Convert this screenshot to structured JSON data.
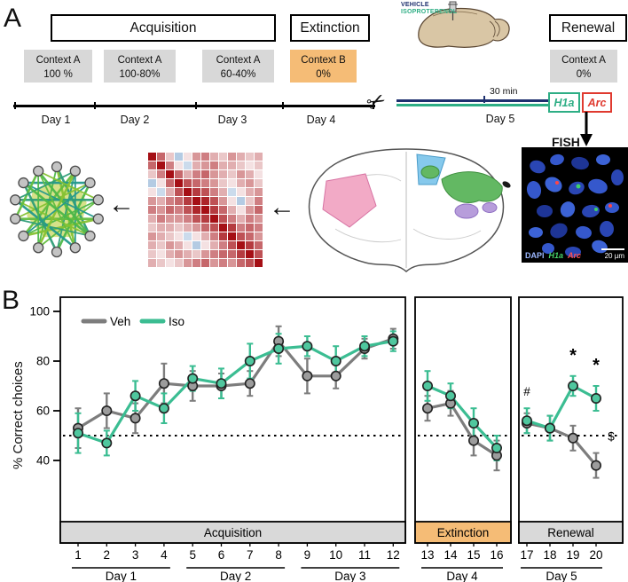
{
  "figure": {
    "panel_a_label": "A",
    "panel_b_label": "B"
  },
  "colors": {
    "iso": "#3bbd92",
    "veh": "#7d7d7d",
    "orange": "#f5bc76",
    "band_gray": "#d9d9d9",
    "h1a_green": "#2eae85",
    "arc_red": "#e03a2f",
    "vehicle_navy": "#1d2f6e",
    "dapi_blue": "#9db8ff"
  },
  "panel_a": {
    "phases": {
      "acquisition": "Acquisition",
      "extinction": "Extinction",
      "renewal": "Renewal"
    },
    "context_boxes": [
      {
        "context": "Context A",
        "pct": "100 %"
      },
      {
        "context": "Context A",
        "pct": "100-80%"
      },
      {
        "context": "Context A",
        "pct": "60-40%"
      },
      {
        "context": "Context B",
        "pct": "0%"
      },
      {
        "context": "Context A",
        "pct": "0%"
      }
    ],
    "days": [
      "Day 1",
      "Day 2",
      "Day 3",
      "Day 4",
      "Day 5"
    ],
    "injection": {
      "vehicle": "VEHICLE",
      "isoproterenol": "ISOPROTERENOL"
    },
    "interval_label": "30 min",
    "gene_h1a": "H1a",
    "gene_arc": "Arc",
    "fish_label": "FISH",
    "micrograph": {
      "channel_dapi": "DAPI",
      "channel_h1a": "H1a",
      "channel_arc": "Arc",
      "scale_bar": "20 µm"
    }
  },
  "panel_b": {
    "ylabel": "% Correct choices"
  },
  "chart_data": [
    {
      "type": "line",
      "ylabel": "% Correct choices",
      "ylim": [
        15,
        105
      ],
      "yticks": [
        40,
        60,
        80,
        100
      ],
      "chance_line": 50,
      "panels": [
        {
          "label": "Acquisition",
          "from": 1,
          "to": 12,
          "band": "gray"
        },
        {
          "label": "Extinction",
          "from": 13,
          "to": 16,
          "band": "orange"
        },
        {
          "label": "Renewal",
          "from": 17,
          "to": 20,
          "band": "gray"
        }
      ],
      "day_groups": [
        {
          "label": "Day 1",
          "from": 1,
          "to": 4
        },
        {
          "label": "Day 2",
          "from": 5,
          "to": 8
        },
        {
          "label": "Day 3",
          "from": 9,
          "to": 12
        },
        {
          "label": "Day 4",
          "from": 13,
          "to": 16
        },
        {
          "label": "Day 5",
          "from": 17,
          "to": 20
        }
      ],
      "series": [
        {
          "name": "Veh",
          "color": "#7d7d7d",
          "marker_color": "#9c9c9c",
          "values": [
            53,
            60,
            57,
            71,
            70,
            70,
            71,
            88,
            74,
            74,
            85,
            89,
            61,
            63,
            48,
            42,
            55,
            53,
            49,
            38
          ],
          "errors": [
            8,
            7,
            6,
            8,
            6,
            5,
            5,
            6,
            7,
            5,
            4,
            4,
            5,
            5,
            6,
            6,
            4,
            5,
            5,
            5
          ]
        },
        {
          "name": "Iso",
          "color": "#3bbd92",
          "marker_color": "#4fc79e",
          "values": [
            51,
            47,
            66,
            61,
            73,
            71,
            80,
            85,
            86,
            80,
            86,
            88,
            70,
            66,
            55,
            45,
            56,
            53,
            70,
            65
          ],
          "errors": [
            8,
            5,
            6,
            6,
            5,
            6,
            7,
            6,
            4,
            6,
            4,
            4,
            6,
            5,
            6,
            5,
            5,
            5,
            4,
            5
          ]
        }
      ],
      "annotations": [
        {
          "text": "#",
          "session": 17,
          "y": 66
        },
        {
          "text": "*",
          "session": 19,
          "y": 80
        },
        {
          "text": "*",
          "session": 20,
          "y": 76
        },
        {
          "text": "$",
          "session": 20,
          "y": 48,
          "dx": 17
        }
      ]
    },
    {
      "type": "heatmap",
      "range": [
        -1,
        1
      ],
      "matrix": [
        [
          1.0,
          0.6,
          0.2,
          -0.3,
          0.1,
          0.4,
          0.5,
          0.3,
          0.2,
          0.4,
          0.3,
          0.2,
          0.3
        ],
        [
          0.6,
          1.0,
          0.5,
          0.1,
          -0.2,
          0.3,
          0.4,
          0.5,
          0.3,
          0.3,
          0.2,
          0.1,
          0.2
        ],
        [
          0.2,
          0.5,
          1.0,
          0.6,
          0.3,
          0.5,
          0.6,
          0.4,
          0.3,
          0.2,
          0.4,
          0.3,
          0.1
        ],
        [
          -0.3,
          0.1,
          0.6,
          1.0,
          0.7,
          0.6,
          0.5,
          0.4,
          0.2,
          0.1,
          0.3,
          0.4,
          0.2
        ],
        [
          0.1,
          -0.2,
          0.3,
          0.7,
          1.0,
          0.8,
          0.7,
          0.5,
          0.3,
          -0.2,
          0.1,
          0.3,
          0.4
        ],
        [
          0.4,
          0.3,
          0.5,
          0.6,
          0.8,
          1.0,
          0.9,
          0.7,
          0.4,
          0.1,
          -0.3,
          0.2,
          0.5
        ],
        [
          0.5,
          0.4,
          0.6,
          0.5,
          0.7,
          0.9,
          1.0,
          0.8,
          0.6,
          0.3,
          0.1,
          0.4,
          0.6
        ],
        [
          0.3,
          0.5,
          0.4,
          0.4,
          0.5,
          0.7,
          0.8,
          1.0,
          0.7,
          0.5,
          0.3,
          0.5,
          0.4
        ],
        [
          0.2,
          0.3,
          0.3,
          0.2,
          0.3,
          0.4,
          0.6,
          0.7,
          1.0,
          0.8,
          0.5,
          0.6,
          0.5
        ],
        [
          0.4,
          0.3,
          0.2,
          0.1,
          -0.2,
          0.1,
          0.3,
          0.5,
          0.8,
          1.0,
          0.7,
          0.6,
          0.4
        ],
        [
          0.3,
          0.2,
          0.4,
          0.3,
          0.1,
          -0.3,
          0.1,
          0.3,
          0.5,
          0.7,
          1.0,
          0.8,
          0.6
        ],
        [
          0.2,
          0.1,
          0.3,
          0.4,
          0.3,
          0.2,
          0.4,
          0.5,
          0.6,
          0.6,
          0.8,
          1.0,
          0.7
        ],
        [
          0.3,
          0.2,
          0.1,
          0.2,
          0.4,
          0.5,
          0.6,
          0.4,
          0.5,
          0.4,
          0.6,
          0.7,
          1.0
        ]
      ]
    }
  ]
}
